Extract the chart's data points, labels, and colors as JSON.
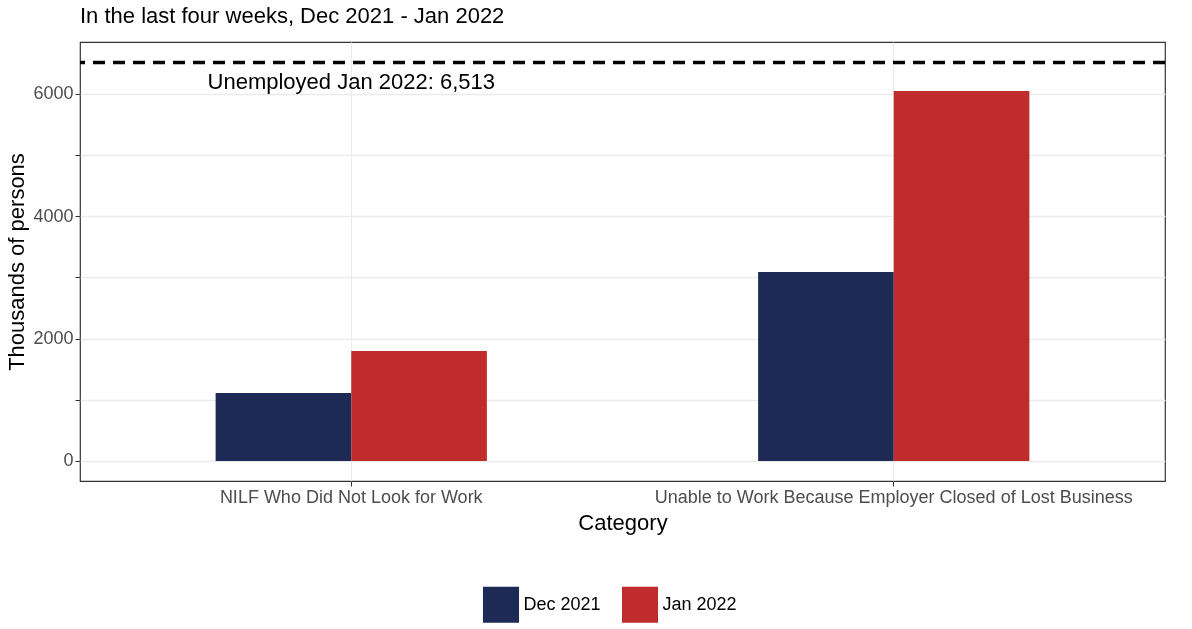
{
  "chart_data": {
    "type": "bar",
    "title": "In the last four weeks, Dec 2021 - Jan 2022",
    "xlabel": "Category",
    "ylabel": "Thousands of persons",
    "categories": [
      "NILF Who Did Not Look for Work",
      "Unable to Work Because Employer Closed of Lost Business"
    ],
    "series": [
      {
        "name": "Dec 2021",
        "color": "#1c2a55",
        "values": [
          1110,
          3090
        ]
      },
      {
        "name": "Jan 2022",
        "color": "#c02b2b",
        "values": [
          1800,
          6050
        ]
      }
    ],
    "ylim": [
      -327,
      6850
    ],
    "yticks": [
      0,
      {
        "value": 1000,
        "label": null
      },
      2000,
      {
        "value": 3000,
        "label": null
      },
      4000,
      {
        "value": 5000,
        "label": null
      },
      6000
    ],
    "grid": true,
    "legend": "bottom",
    "ref_lines": [
      {
        "axis": "y",
        "value": 6513,
        "label": "Unemployed Jan 2022: 6,513",
        "color": "#000000",
        "line_style": "dashed"
      }
    ]
  }
}
